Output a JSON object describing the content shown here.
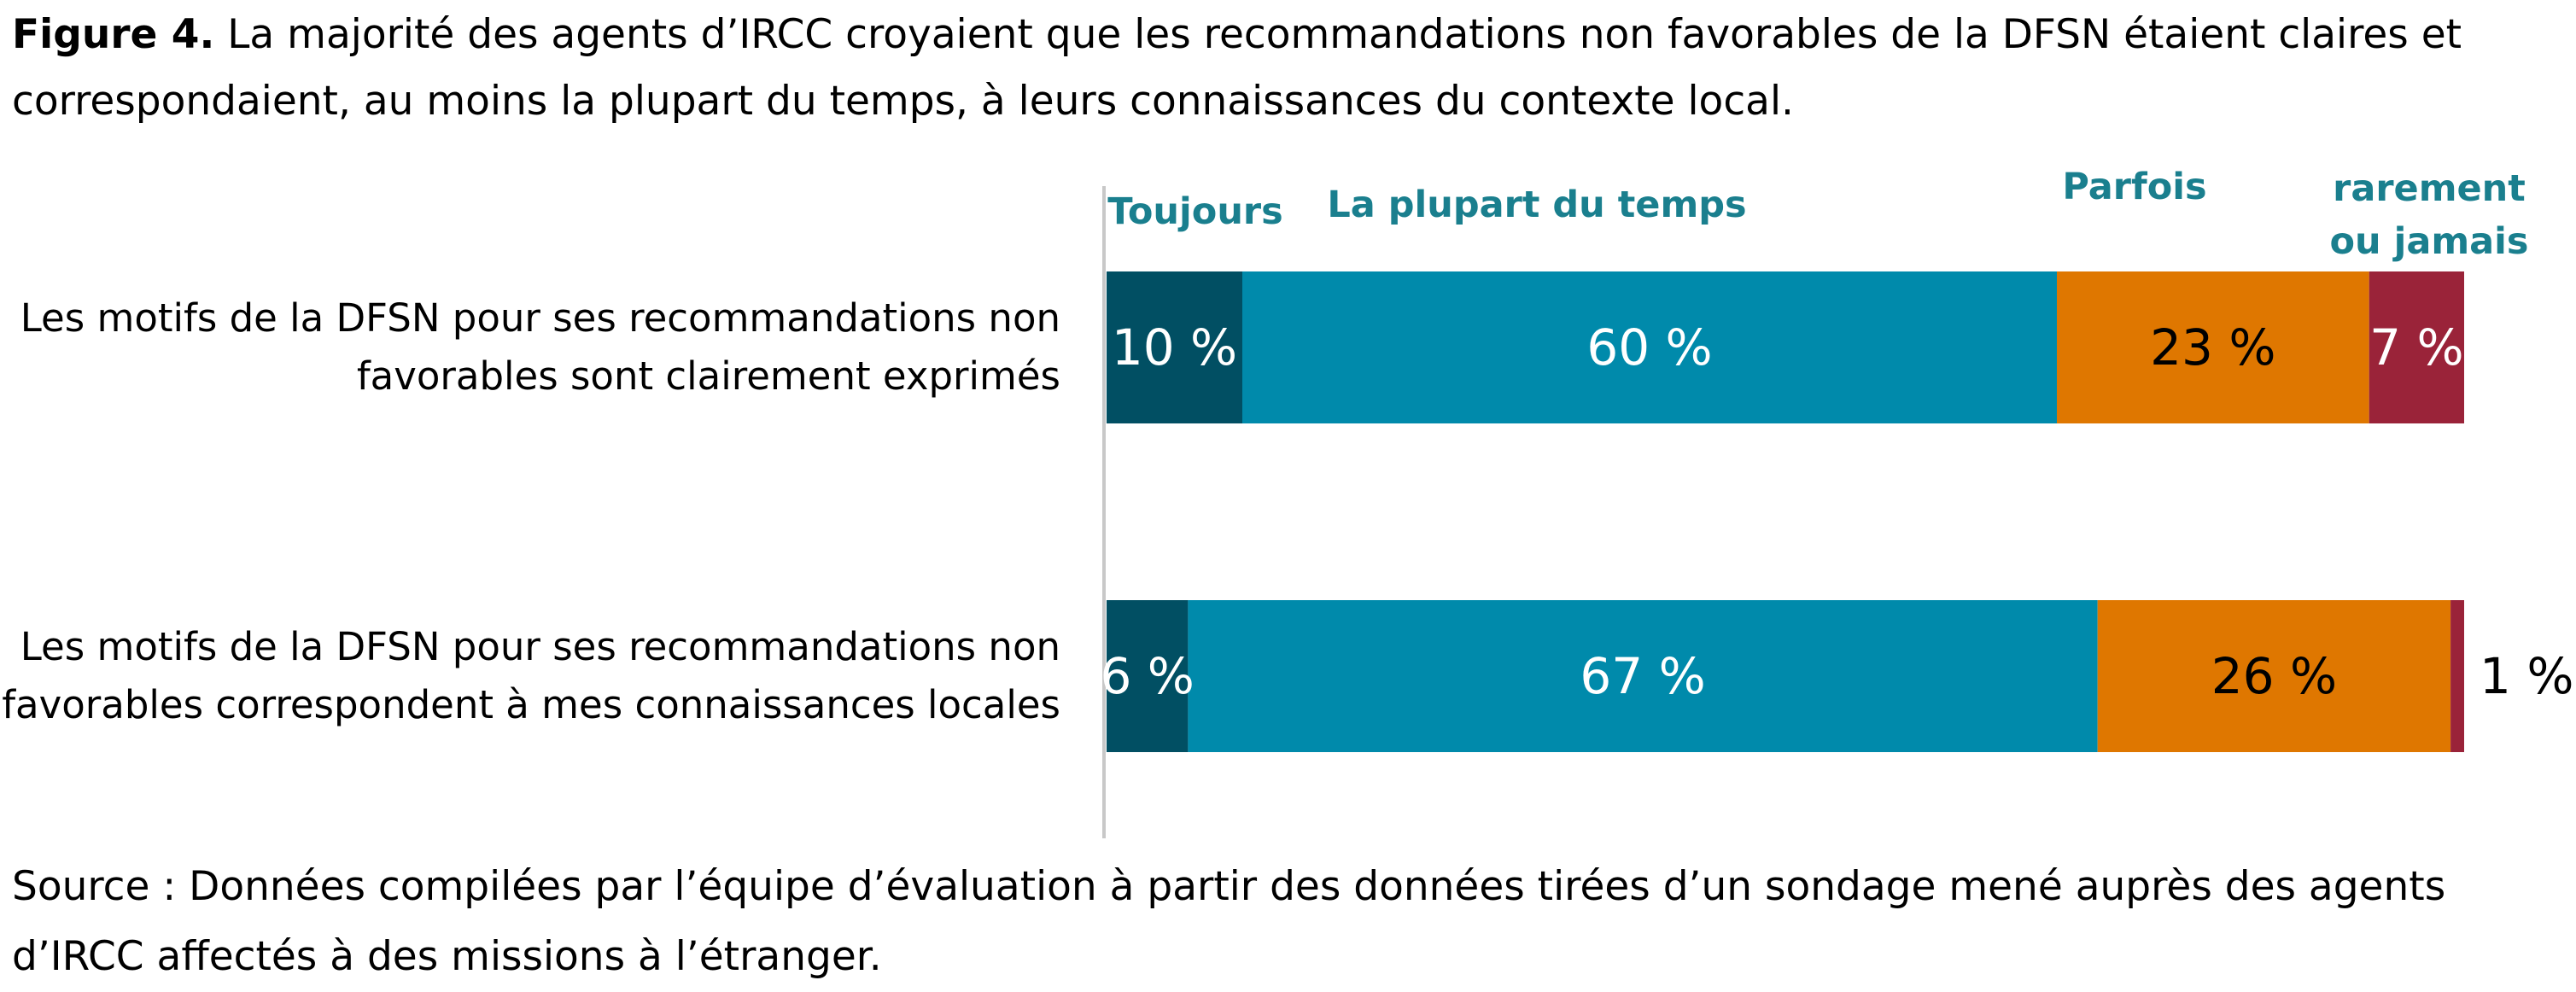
{
  "title": {
    "label": "Figure 4.",
    "text": "La majorité des agents d’IRCC croyaient que les recommandations non favorables de la DFSN étaient claires et correspondaient, au moins la plupart du temps, à leurs connaissances du contexte local."
  },
  "source": "Source : Données compilées par l’équipe d’évaluation à partir des données tirées d’un sondage mené auprès des agents d’IRCC affectés à des missions à l’étranger.",
  "colors": {
    "legend_text": "#1a7f8e",
    "axis": "#c8c8c8",
    "label_light": "#ffffff",
    "label_dark": "#000000"
  },
  "chart_data": {
    "type": "bar",
    "orientation": "horizontal",
    "stacked": true,
    "value_unit": "%",
    "xlim": [
      0,
      100
    ],
    "categories": [
      "Les motifs de la DFSN pour ses recommandations non favorables sont clairement exprimés",
      "Les motifs de la DFSN pour ses recommandations non favorables correspondent à mes connaissances locales"
    ],
    "category_lines": [
      [
        "Les motifs de la DFSN pour ses recommandations non",
        "favorables sont clairement exprimés"
      ],
      [
        "Les motifs de la DFSN pour ses recommandations non",
        "favorables correspondent à mes connaissances locales"
      ]
    ],
    "series": [
      {
        "name": "Toujours",
        "legend_lines": [
          "Toujours"
        ],
        "color": "#014f63",
        "label_color": "#ffffff",
        "values": [
          10,
          6
        ],
        "labels": [
          "10 %",
          "6 %"
        ]
      },
      {
        "name": "La plupart du temps",
        "legend_lines": [
          "La plupart du temps"
        ],
        "color": "#008aab",
        "label_color": "#ffffff",
        "values": [
          60,
          67
        ],
        "labels": [
          "60 %",
          "67 %"
        ]
      },
      {
        "name": "Parfois",
        "legend_lines": [
          "Parfois"
        ],
        "color": "#df7700",
        "label_color": "#000000",
        "values": [
          23,
          26
        ],
        "labels": [
          "23 %",
          "26 %"
        ]
      },
      {
        "name": "rarement ou jamais",
        "legend_lines": [
          "rarement",
          "ou jamais"
        ],
        "color": "#9a2339",
        "label_color": "#ffffff",
        "values": [
          7,
          1
        ],
        "labels": [
          "7 %",
          "1 %"
        ]
      }
    ],
    "legend_position": "top",
    "grid": false
  }
}
